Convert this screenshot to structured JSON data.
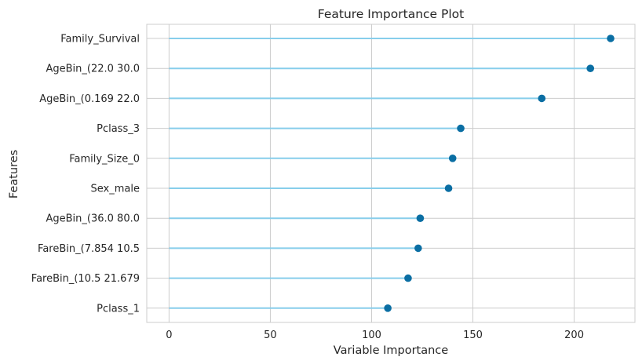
{
  "chart_data": {
    "type": "lollipop",
    "title": "Feature Importance Plot",
    "xlabel": "Variable Importance",
    "ylabel": "Features",
    "xlim": [
      -11,
      230
    ],
    "xticks": [
      0,
      50,
      100,
      150,
      200
    ],
    "grid": true,
    "categories": [
      "Family_Survival",
      "AgeBin_(22.0 30.0",
      "AgeBin_(0.169 22.0",
      "Pclass_3",
      "Family_Size_0",
      "Sex_male",
      "AgeBin_(36.0 80.0",
      "FareBin_(7.854 10.5",
      "FareBin_(10.5 21.679",
      "Pclass_1"
    ],
    "values": [
      218,
      208,
      184,
      144,
      140,
      138,
      124,
      123,
      118,
      108
    ],
    "colors": {
      "stem": "#87ceeb",
      "marker": "#0a6ea3",
      "grid": "#cccccc",
      "spine": "#cccccc",
      "text": "#262626"
    }
  }
}
